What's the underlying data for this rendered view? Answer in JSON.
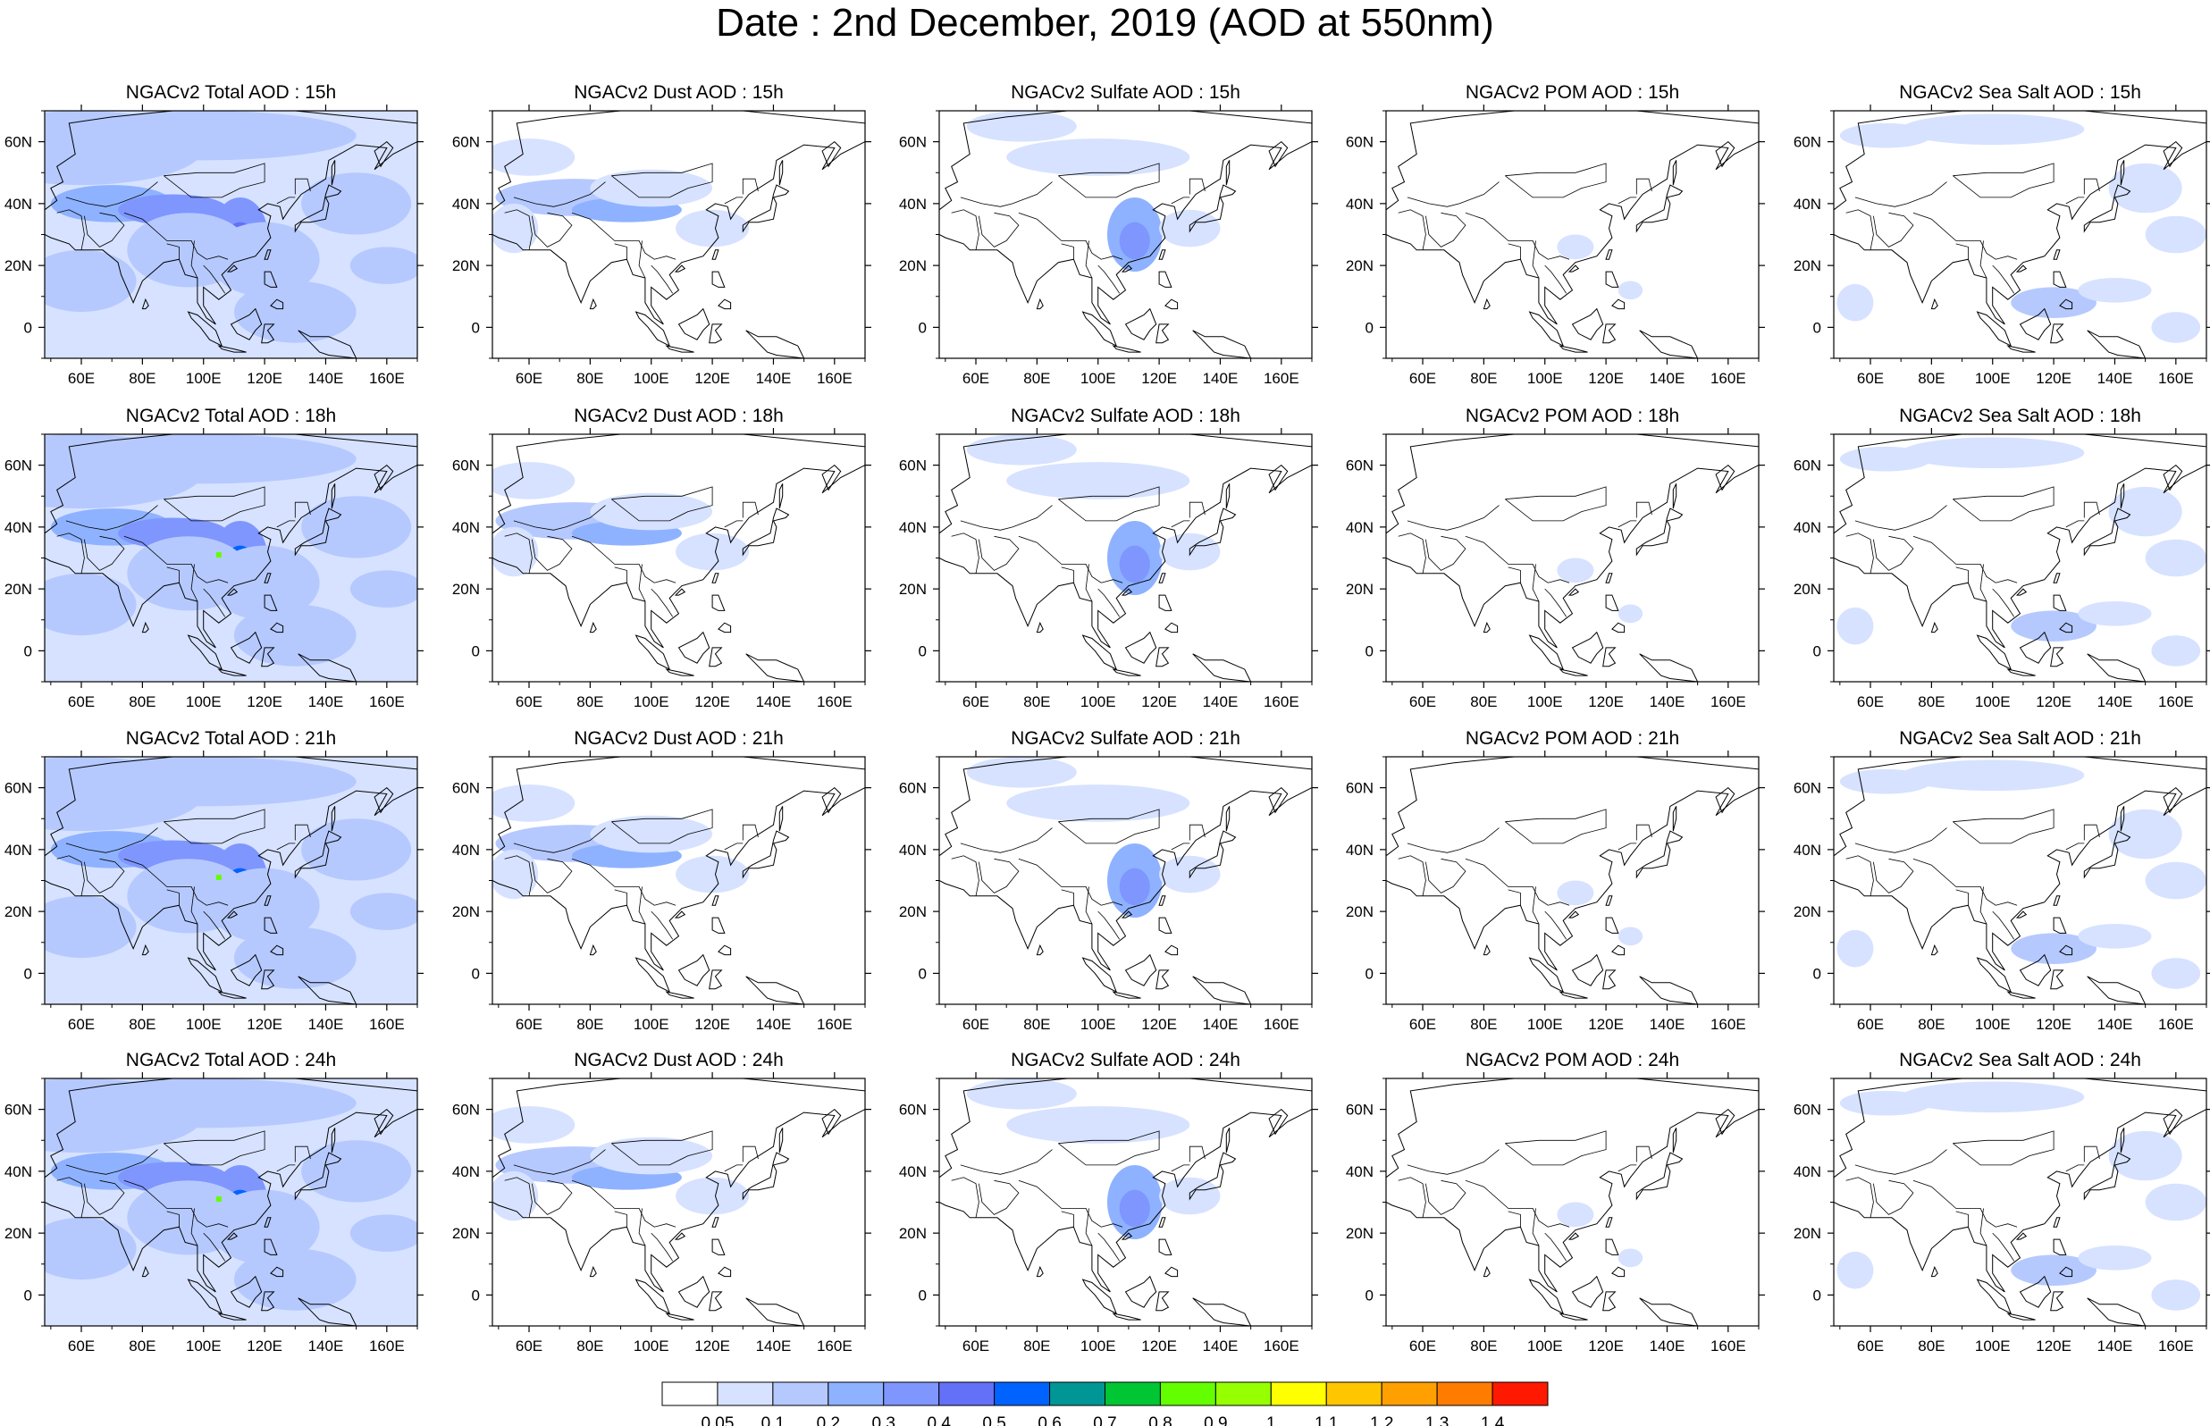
{
  "title": "Date : 2nd December, 2019 (AOD at 550nm)",
  "colors": {
    "levels": [
      "#ffffff",
      "#d6e2ff",
      "#b5c9ff",
      "#8eb2ff",
      "#7f96ff",
      "#6370f8",
      "#0063ff",
      "#009696",
      "#00c633",
      "#63ff00",
      "#96ff00",
      "#c6ff33",
      "#ffff00",
      "#ffc600",
      "#ffa000",
      "#ff7c00",
      "#ff1900"
    ],
    "coast": "#000000",
    "frame": "#000000"
  },
  "colorbar": {
    "labels": [
      "0.05",
      "0.1",
      "0.2",
      "0.3",
      "0.4",
      "0.5",
      "0.6",
      "0.7",
      "0.8",
      "0.9",
      "1",
      "1.1",
      "1.2",
      "1.3",
      "1.4"
    ],
    "fill_colors": [
      "#ffffff",
      "#d6e2ff",
      "#b5c9ff",
      "#8eb2ff",
      "#7f96ff",
      "#6370f8",
      "#0063ff",
      "#009696",
      "#00c633",
      "#63ff00",
      "#96ff00",
      "#ffff00",
      "#ffc600",
      "#ffa000",
      "#ff7c00",
      "#ff1900"
    ]
  },
  "map_axes": {
    "lon_range": [
      48,
      170
    ],
    "lat_range": [
      -10,
      70
    ],
    "lon_ticks": [
      "60E",
      "80E",
      "100E",
      "120E",
      "140E",
      "160E"
    ],
    "lon_tick_values": [
      60,
      80,
      100,
      120,
      140,
      160
    ],
    "lat_ticks": [
      "60N",
      "40N",
      "20N",
      "0"
    ],
    "lat_tick_values": [
      60,
      40,
      20,
      0
    ]
  },
  "species": [
    "total",
    "dust",
    "sulfate",
    "pom",
    "seasalt"
  ],
  "hours": [
    "15h",
    "18h",
    "21h",
    "24h"
  ],
  "panels": [
    [
      {
        "title": "NGACv2 Total AOD : 15h"
      },
      {
        "title": "NGACv2 Dust AOD : 15h"
      },
      {
        "title": "NGACv2 Sulfate AOD : 15h"
      },
      {
        "title": "NGACv2 POM AOD : 15h"
      },
      {
        "title": "NGACv2 Sea Salt AOD : 15h"
      }
    ],
    [
      {
        "title": "NGACv2 Total AOD : 18h"
      },
      {
        "title": "NGACv2 Dust AOD : 18h"
      },
      {
        "title": "NGACv2 Sulfate AOD : 18h"
      },
      {
        "title": "NGACv2 POM AOD : 18h"
      },
      {
        "title": "NGACv2 Sea Salt AOD : 18h"
      }
    ],
    [
      {
        "title": "NGACv2 Total AOD : 21h"
      },
      {
        "title": "NGACv2 Dust AOD : 21h"
      },
      {
        "title": "NGACv2 Sulfate AOD : 21h"
      },
      {
        "title": "NGACv2 POM AOD : 21h"
      },
      {
        "title": "NGACv2 Sea Salt AOD : 21h"
      }
    ],
    [
      {
        "title": "NGACv2 Total AOD : 24h"
      },
      {
        "title": "NGACv2 Dust AOD : 24h"
      },
      {
        "title": "NGACv2 Sulfate AOD : 24h"
      },
      {
        "title": "NGACv2 POM AOD : 24h"
      },
      {
        "title": "NGACv2 Sea Salt  AOD : 24h"
      }
    ]
  ]
}
